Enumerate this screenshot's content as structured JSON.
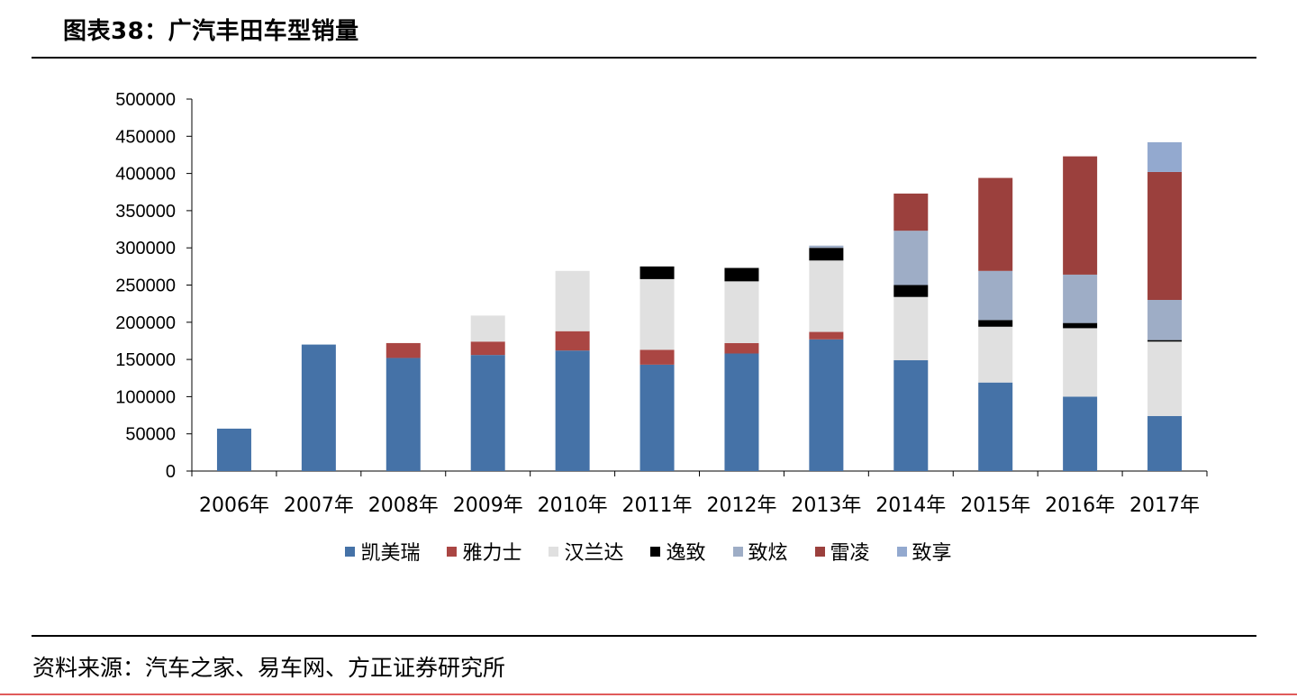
{
  "header": {
    "title": "图表38：广汽丰田车型销量"
  },
  "footer": {
    "source": "资料来源：汽车之家、易车网、方正证券研究所"
  },
  "colors": {
    "凯美瑞": "#4572a7",
    "雅力士": "#aa4643",
    "汉兰达": "#e0e0e0",
    "逸致": "#000000",
    "致炫": "#9eadc6",
    "雷凌": "#9b403d",
    "致享": "#93a9cf",
    "axis": "#000000",
    "accent_line": "#e05a5a"
  },
  "chart_data": {
    "type": "bar",
    "stacked": true,
    "categories": [
      "2006年",
      "2007年",
      "2008年",
      "2009年",
      "2010年",
      "2011年",
      "2012年",
      "2013年",
      "2014年",
      "2015年",
      "2016年",
      "2017年"
    ],
    "ylim": [
      0,
      500000
    ],
    "yticks": [
      "0",
      "50000",
      "100000",
      "150000",
      "200000",
      "250000",
      "300000",
      "350000",
      "400000",
      "450000",
      "500000"
    ],
    "grid": false,
    "legend_position": "bottom",
    "series": [
      {
        "name": "凯美瑞",
        "values": [
          57000,
          170000,
          152000,
          156000,
          162000,
          143000,
          158000,
          177000,
          149000,
          119000,
          100000,
          74000
        ]
      },
      {
        "name": "雅力士",
        "values": [
          0,
          0,
          20000,
          18000,
          26000,
          20000,
          14000,
          10000,
          0,
          0,
          0,
          0
        ]
      },
      {
        "name": "汉兰达",
        "values": [
          0,
          0,
          0,
          35000,
          81000,
          95000,
          83000,
          96000,
          85000,
          75000,
          92000,
          100000
        ]
      },
      {
        "name": "逸致",
        "values": [
          0,
          0,
          0,
          0,
          0,
          17000,
          18000,
          17000,
          16000,
          9000,
          7000,
          2000
        ]
      },
      {
        "name": "致炫",
        "values": [
          0,
          0,
          0,
          0,
          0,
          0,
          0,
          3000,
          73000,
          66000,
          65000,
          54000
        ]
      },
      {
        "name": "雷凌",
        "values": [
          0,
          0,
          0,
          0,
          0,
          0,
          0,
          0,
          50000,
          125000,
          159000,
          172000
        ]
      },
      {
        "name": "致享",
        "values": [
          0,
          0,
          0,
          0,
          0,
          0,
          0,
          0,
          0,
          0,
          0,
          40000
        ]
      }
    ]
  }
}
